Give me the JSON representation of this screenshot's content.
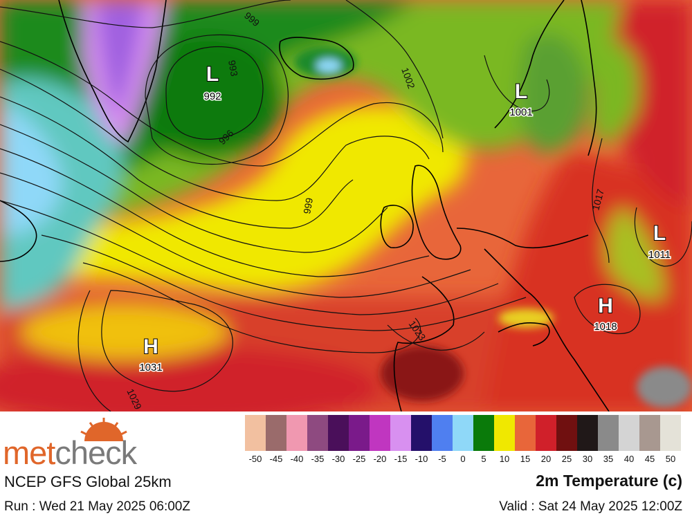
{
  "brand": {
    "part1": "met",
    "part2": "check"
  },
  "model_title": "NCEP GFS Global 25km",
  "run_text": "Run : Wed 21 May 2025 06:00Z",
  "field_title": "2m Temperature (c)",
  "valid_text": "Valid : Sat 24 May 2025 12:00Z",
  "legend": {
    "ticks": [
      "-50",
      "-45",
      "-40",
      "-35",
      "-30",
      "-25",
      "-20",
      "-15",
      "-10",
      "-5",
      "0",
      "5",
      "10",
      "15",
      "20",
      "25",
      "30",
      "35",
      "40",
      "45",
      "50"
    ],
    "colors": [
      "#f2c0a0",
      "#9a6b6b",
      "#f098b0",
      "#8e4a80",
      "#4a0f5a",
      "#7a1a8a",
      "#c036c0",
      "#d890f0",
      "#24106a",
      "#4f7ff0",
      "#8fd8f8",
      "#0a7a0a",
      "#f0e800",
      "#e8663a",
      "#d0202a",
      "#701010",
      "#201818",
      "#8a8a8a",
      "#d4d4d4",
      "#a89890",
      "#e4e2d8"
    ]
  },
  "pressure_centers": [
    {
      "type": "L",
      "value": "992"
    },
    {
      "type": "L",
      "value": "1001"
    },
    {
      "type": "L",
      "value": "1011"
    },
    {
      "type": "H",
      "value": "1018"
    },
    {
      "type": "H",
      "value": "1031"
    }
  ],
  "isobar_labels": [
    "999",
    "993",
    "996",
    "1002",
    "999",
    "1017",
    "1023",
    "1029"
  ]
}
